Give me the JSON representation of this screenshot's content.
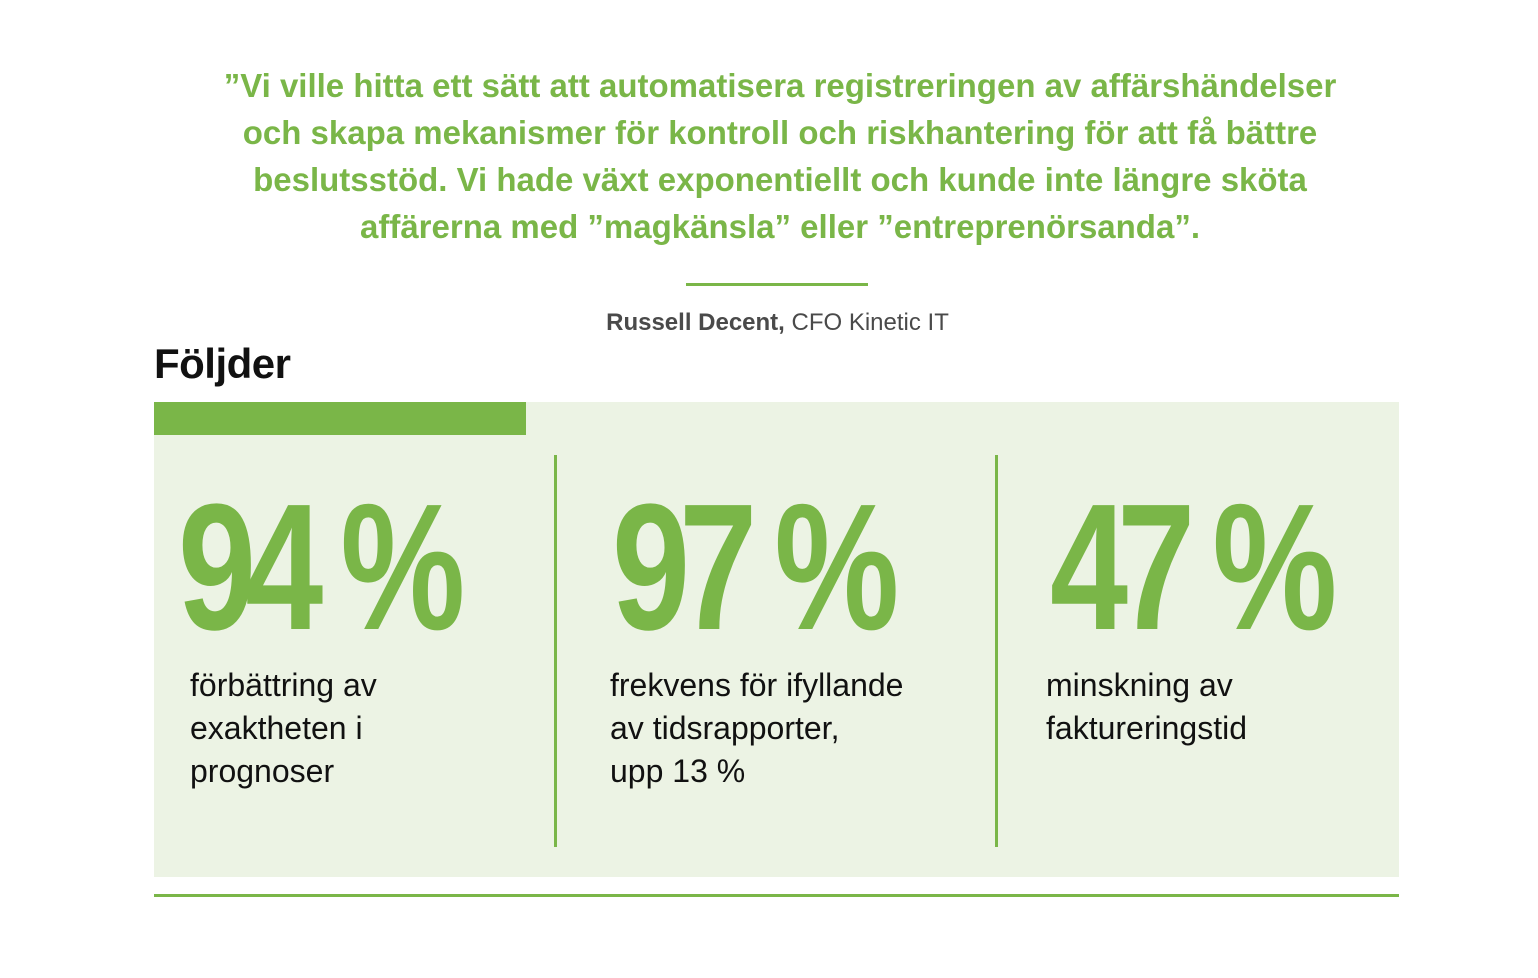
{
  "quote": {
    "lines": [
      "”Vi ville hitta ett sätt att automatisera registreringen av affärshändelser",
      "och skapa mekanismer för kontroll och riskhantering för att få bättre",
      "beslutsstöd. Vi hade växt exponentiellt och kunde inte längre sköta",
      "affärerna med ”magkänsla” eller ”entreprenörsanda”."
    ]
  },
  "attribution": {
    "name": "Russell Decent,",
    "role": "CFO Kinetic IT"
  },
  "section_title": "Följder",
  "stats": [
    {
      "value": "94 %",
      "label_lines": [
        "förbättring av",
        "exaktheten i",
        "prognoser"
      ]
    },
    {
      "value": "97 %",
      "label_lines": [
        "frekvens för ifyllande",
        "av tidsrapporter,",
        "upp 13 %"
      ]
    },
    {
      "value": "47 %",
      "label_lines": [
        "minskning av",
        "faktureringstid"
      ]
    }
  ],
  "colors": {
    "accent_green": "#7ab648",
    "panel_background": "#ecf3e4",
    "heading_text": "#111111",
    "attribution_text": "#4a4a4a"
  }
}
